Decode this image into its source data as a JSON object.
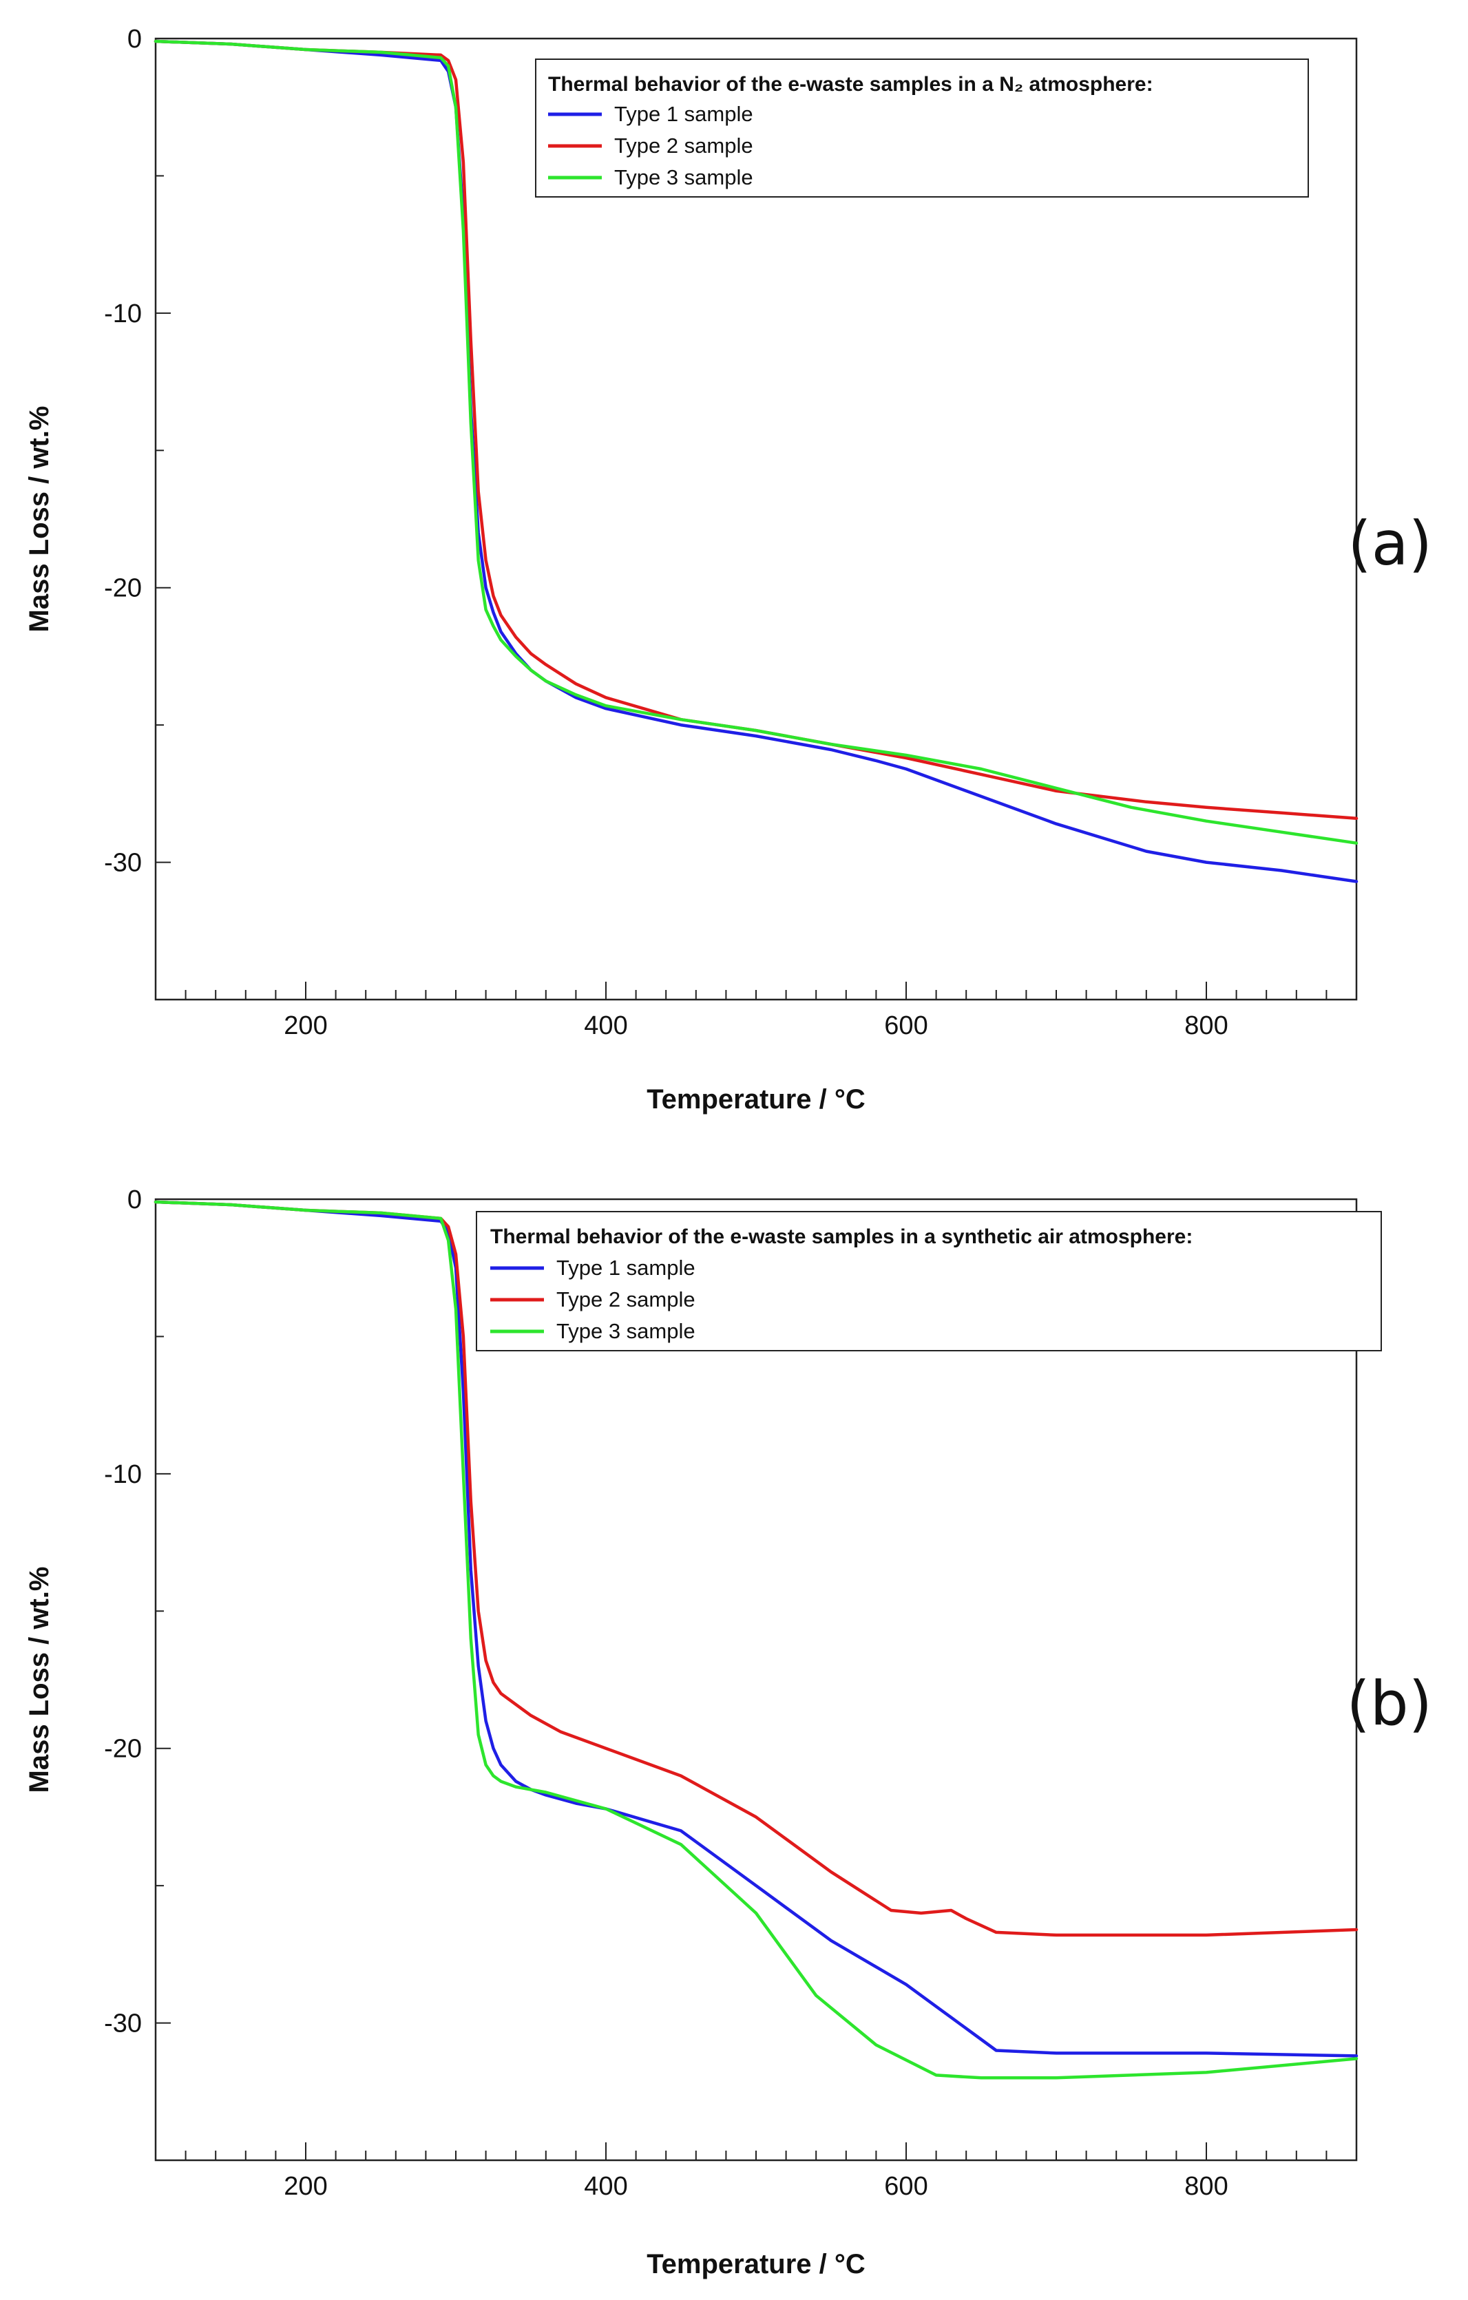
{
  "chart_data": [
    {
      "type": "line",
      "panel": "(a)",
      "title": "",
      "legend_title": "Thermal behavior of the e-waste samples in a N₂ atmosphere:",
      "legend_position": "top-right",
      "xlabel": "Temperature / °C",
      "ylabel": "Mass Loss / wt.%",
      "xlim": [
        100,
        900
      ],
      "ylim": [
        -35,
        0
      ],
      "x_ticks": [
        200,
        400,
        600,
        800
      ],
      "x_tick_labels": [
        "200",
        "400",
        "600",
        "800"
      ],
      "y_ticks": [
        0,
        -10,
        -20,
        -30
      ],
      "y_tick_labels": [
        "0",
        "-10",
        "-20",
        "-30"
      ],
      "grid": false,
      "series": [
        {
          "name": "Type 1 sample",
          "color": "#1f1fe6",
          "x": [
            100,
            150,
            200,
            250,
            290,
            295,
            300,
            305,
            310,
            315,
            320,
            325,
            330,
            340,
            350,
            360,
            380,
            400,
            450,
            500,
            550,
            580,
            600,
            640,
            700,
            760,
            800,
            850,
            900
          ],
          "y": [
            -0.1,
            -0.2,
            -0.4,
            -0.6,
            -0.8,
            -1.2,
            -2.5,
            -6.5,
            -13.5,
            -18.0,
            -20.0,
            -20.9,
            -21.6,
            -22.4,
            -23.0,
            -23.4,
            -24.0,
            -24.4,
            -25.0,
            -25.4,
            -25.9,
            -26.3,
            -26.6,
            -27.4,
            -28.6,
            -29.6,
            -30.0,
            -30.3,
            -30.7
          ]
        },
        {
          "name": "Type 2 sample",
          "color": "#e01b1b",
          "x": [
            100,
            150,
            200,
            250,
            290,
            295,
            300,
            305,
            310,
            315,
            320,
            325,
            330,
            340,
            350,
            360,
            380,
            400,
            450,
            500,
            550,
            600,
            650,
            700,
            760,
            800,
            850,
            900
          ],
          "y": [
            -0.1,
            -0.2,
            -0.4,
            -0.5,
            -0.6,
            -0.8,
            -1.5,
            -4.5,
            -11.0,
            -16.5,
            -19.0,
            -20.3,
            -21.0,
            -21.8,
            -22.4,
            -22.8,
            -23.5,
            -24.0,
            -24.8,
            -25.2,
            -25.7,
            -26.2,
            -26.8,
            -27.4,
            -27.8,
            -28.0,
            -28.2,
            -28.4
          ]
        },
        {
          "name": "Type 3 sample",
          "color": "#2de52d",
          "x": [
            100,
            150,
            200,
            250,
            290,
            295,
            300,
            305,
            310,
            315,
            320,
            325,
            330,
            340,
            350,
            360,
            380,
            400,
            450,
            500,
            550,
            600,
            650,
            700,
            750,
            800,
            850,
            900
          ],
          "y": [
            -0.1,
            -0.2,
            -0.4,
            -0.5,
            -0.7,
            -1.0,
            -2.5,
            -7.0,
            -14.0,
            -19.0,
            -20.8,
            -21.4,
            -21.9,
            -22.5,
            -23.0,
            -23.4,
            -23.9,
            -24.3,
            -24.8,
            -25.2,
            -25.7,
            -26.1,
            -26.6,
            -27.3,
            -28.0,
            -28.5,
            -28.9,
            -29.3
          ]
        }
      ]
    },
    {
      "type": "line",
      "panel": "(b)",
      "title": "",
      "legend_title": "Thermal behavior of the e-waste samples in a synthetic air atmosphere:",
      "legend_position": "top-right",
      "xlabel": "Temperature / °C",
      "ylabel": "Mass Loss / wt.%",
      "xlim": [
        100,
        900
      ],
      "ylim": [
        -35,
        0
      ],
      "x_ticks": [
        200,
        400,
        600,
        800
      ],
      "x_tick_labels": [
        "200",
        "400",
        "600",
        "800"
      ],
      "y_ticks": [
        0,
        -10,
        -20,
        -30
      ],
      "y_tick_labels": [
        "0",
        "-10",
        "-20",
        "-30"
      ],
      "grid": false,
      "series": [
        {
          "name": "Type 1 sample",
          "color": "#1f1fe6",
          "x": [
            100,
            150,
            200,
            250,
            290,
            295,
            300,
            305,
            310,
            315,
            320,
            325,
            330,
            340,
            350,
            360,
            380,
            400,
            450,
            500,
            550,
            600,
            610,
            630,
            645,
            660,
            700,
            800,
            900
          ],
          "y": [
            -0.1,
            -0.2,
            -0.4,
            -0.6,
            -0.8,
            -1.2,
            -2.5,
            -7.0,
            -13.5,
            -17.0,
            -19.0,
            -20.0,
            -20.6,
            -21.2,
            -21.5,
            -21.7,
            -22.0,
            -22.2,
            -23.0,
            -25.0,
            -27.0,
            -28.6,
            -29.0,
            -29.8,
            -30.4,
            -31.0,
            -31.1,
            -31.1,
            -31.2
          ]
        },
        {
          "name": "Type 2 sample",
          "color": "#e01b1b",
          "x": [
            100,
            150,
            200,
            250,
            290,
            295,
            300,
            305,
            310,
            315,
            320,
            325,
            330,
            340,
            350,
            370,
            400,
            450,
            500,
            550,
            590,
            610,
            630,
            640,
            660,
            700,
            800,
            900
          ],
          "y": [
            -0.1,
            -0.2,
            -0.4,
            -0.5,
            -0.7,
            -1.0,
            -2.0,
            -5.0,
            -11.0,
            -15.0,
            -16.8,
            -17.6,
            -18.0,
            -18.4,
            -18.8,
            -19.4,
            -20.0,
            -21.0,
            -22.5,
            -24.5,
            -25.9,
            -26.0,
            -25.9,
            -26.2,
            -26.7,
            -26.8,
            -26.8,
            -26.6
          ]
        },
        {
          "name": "Type 3 sample",
          "color": "#2de52d",
          "x": [
            100,
            150,
            200,
            250,
            290,
            295,
            300,
            305,
            310,
            315,
            320,
            325,
            330,
            340,
            360,
            400,
            450,
            500,
            540,
            580,
            620,
            650,
            700,
            800,
            900
          ],
          "y": [
            -0.1,
            -0.2,
            -0.4,
            -0.5,
            -0.7,
            -1.5,
            -4.0,
            -10.0,
            -16.0,
            -19.5,
            -20.6,
            -21.0,
            -21.2,
            -21.4,
            -21.6,
            -22.2,
            -23.5,
            -26.0,
            -29.0,
            -30.8,
            -31.9,
            -32.0,
            -32.0,
            -31.8,
            -31.3
          ]
        }
      ]
    }
  ]
}
